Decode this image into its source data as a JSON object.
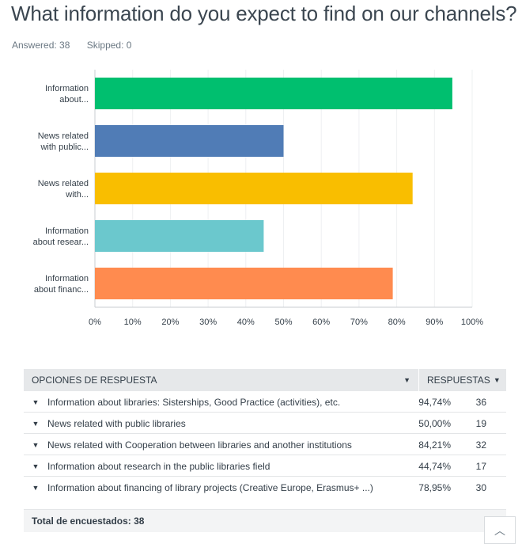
{
  "question": {
    "title": "What information do you expect to find on our channels?",
    "answered": "Answered: 38",
    "skipped": "Skipped: 0"
  },
  "chart_data": {
    "type": "bar",
    "orientation": "horizontal",
    "categories": [
      [
        "Information",
        "about..."
      ],
      [
        "News related",
        "with public..."
      ],
      [
        "News related",
        "with..."
      ],
      [
        "Information",
        "about resear..."
      ],
      [
        "Information",
        "about financ..."
      ]
    ],
    "values": [
      94.74,
      50.0,
      84.21,
      44.74,
      78.95
    ],
    "colors": [
      "#00bf6f",
      "#507cb6",
      "#f9be00",
      "#6bc8cd",
      "#ff8b4f"
    ],
    "xlim": [
      0,
      100
    ],
    "ticks": [
      "0%",
      "10%",
      "20%",
      "30%",
      "40%",
      "50%",
      "60%",
      "70%",
      "80%",
      "90%",
      "100%"
    ],
    "grid": true
  },
  "table": {
    "col_options": "OPCIONES DE RESPUESTA",
    "col_responses": "RESPUESTAS",
    "rows": [
      {
        "label": "Information about libraries: Sisterships, Good Practice (activities), etc.",
        "pct": "94,74%",
        "count": "36"
      },
      {
        "label": "News related with public libraries",
        "pct": "50,00%",
        "count": "19"
      },
      {
        "label": "News related with Cooperation between libraries and another institutions",
        "pct": "84,21%",
        "count": "32"
      },
      {
        "label": "Information about research in the public libraries field",
        "pct": "44,74%",
        "count": "17"
      },
      {
        "label": "Information about financing of library projects (Creative Europe, Erasmus+ ...)",
        "pct": "78,95%",
        "count": "30"
      }
    ],
    "total": "Total de encuestados: 38"
  }
}
